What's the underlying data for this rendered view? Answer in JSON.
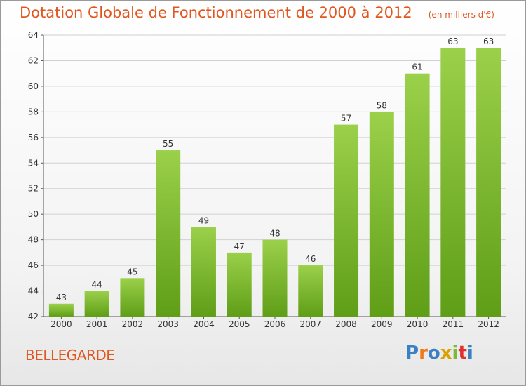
{
  "chart_data": {
    "type": "bar",
    "title": "Dotation Globale de Fonctionnement de 2000 à 2012",
    "subtitle": "(en milliers d'€)",
    "categories": [
      "2000",
      "2001",
      "2002",
      "2003",
      "2004",
      "2005",
      "2006",
      "2007",
      "2008",
      "2009",
      "2010",
      "2011",
      "2012"
    ],
    "values": [
      43,
      44,
      45,
      55,
      49,
      47,
      48,
      46,
      57,
      58,
      61,
      63,
      63
    ],
    "ylim": [
      42,
      64
    ],
    "yticks": [
      42,
      44,
      46,
      48,
      50,
      52,
      54,
      56,
      58,
      60,
      62,
      64
    ],
    "grid": true,
    "bar_color_top": "#9bd04a",
    "bar_color_bottom": "#5f9e17"
  },
  "commune": "BELLEGARDE",
  "logo": {
    "letters": [
      "P",
      "r",
      "o",
      "x",
      "i",
      "t",
      "i"
    ],
    "colors": [
      "#3b7fc4",
      "#f07a1a",
      "#3b7fc4",
      "#d9a300",
      "#7cb83a",
      "#e03030",
      "#3b7fc4"
    ]
  },
  "colors": {
    "title": "#e0561e",
    "grid": "#d0d0d0",
    "axis": "#555555"
  }
}
